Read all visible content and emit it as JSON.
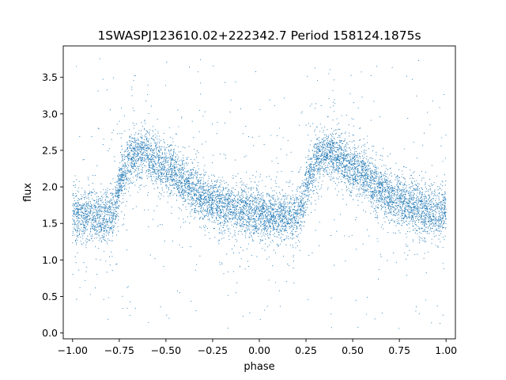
{
  "chart_data": {
    "type": "scatter",
    "title": "1SWASPJ123610.02+222342.7 Period 158124.1875s",
    "xlabel": "phase",
    "ylabel": "flux",
    "xlim": [
      -1.05,
      1.05
    ],
    "ylim": [
      -0.08,
      3.93
    ],
    "xticks": [
      -1.0,
      -0.75,
      -0.5,
      -0.25,
      0.0,
      0.25,
      0.5,
      0.75,
      1.0
    ],
    "xtick_labels": [
      "−1.00",
      "−0.75",
      "−0.50",
      "−0.25",
      "0.00",
      "0.25",
      "0.50",
      "0.75",
      "1.00"
    ],
    "yticks": [
      0.0,
      0.5,
      1.0,
      1.5,
      2.0,
      2.5,
      3.0,
      3.5
    ],
    "ytick_labels": [
      "0.0",
      "0.5",
      "1.0",
      "1.5",
      "2.0",
      "2.5",
      "3.0",
      "3.5"
    ],
    "grid": false,
    "marker_color": "#1f77b4",
    "series": [
      {
        "x": [
          -1.0,
          -0.95,
          -0.9,
          -0.85,
          -0.8,
          -0.77,
          -0.74,
          -0.7,
          -0.65,
          -0.6,
          -0.55,
          -0.5,
          -0.45,
          -0.4,
          -0.35,
          -0.3,
          -0.25,
          -0.2,
          -0.15,
          -0.1,
          -0.05,
          0.0,
          0.05,
          0.1,
          0.15,
          0.2,
          0.23,
          0.26,
          0.3,
          0.35,
          0.4,
          0.45,
          0.5,
          0.55,
          0.6,
          0.65,
          0.7,
          0.75,
          0.8,
          0.85,
          0.9,
          0.95,
          1.0
        ],
        "y": [
          1.65,
          1.6,
          1.6,
          1.58,
          1.6,
          1.75,
          2.1,
          2.35,
          2.45,
          2.45,
          2.35,
          2.25,
          2.2,
          2.05,
          1.95,
          1.85,
          1.8,
          1.75,
          1.7,
          1.68,
          1.65,
          1.63,
          1.62,
          1.6,
          1.6,
          1.6,
          1.72,
          2.1,
          2.35,
          2.45,
          2.45,
          2.35,
          2.25,
          2.2,
          2.05,
          1.95,
          1.85,
          1.8,
          1.75,
          1.7,
          1.68,
          1.65,
          1.65
        ]
      }
    ]
  }
}
